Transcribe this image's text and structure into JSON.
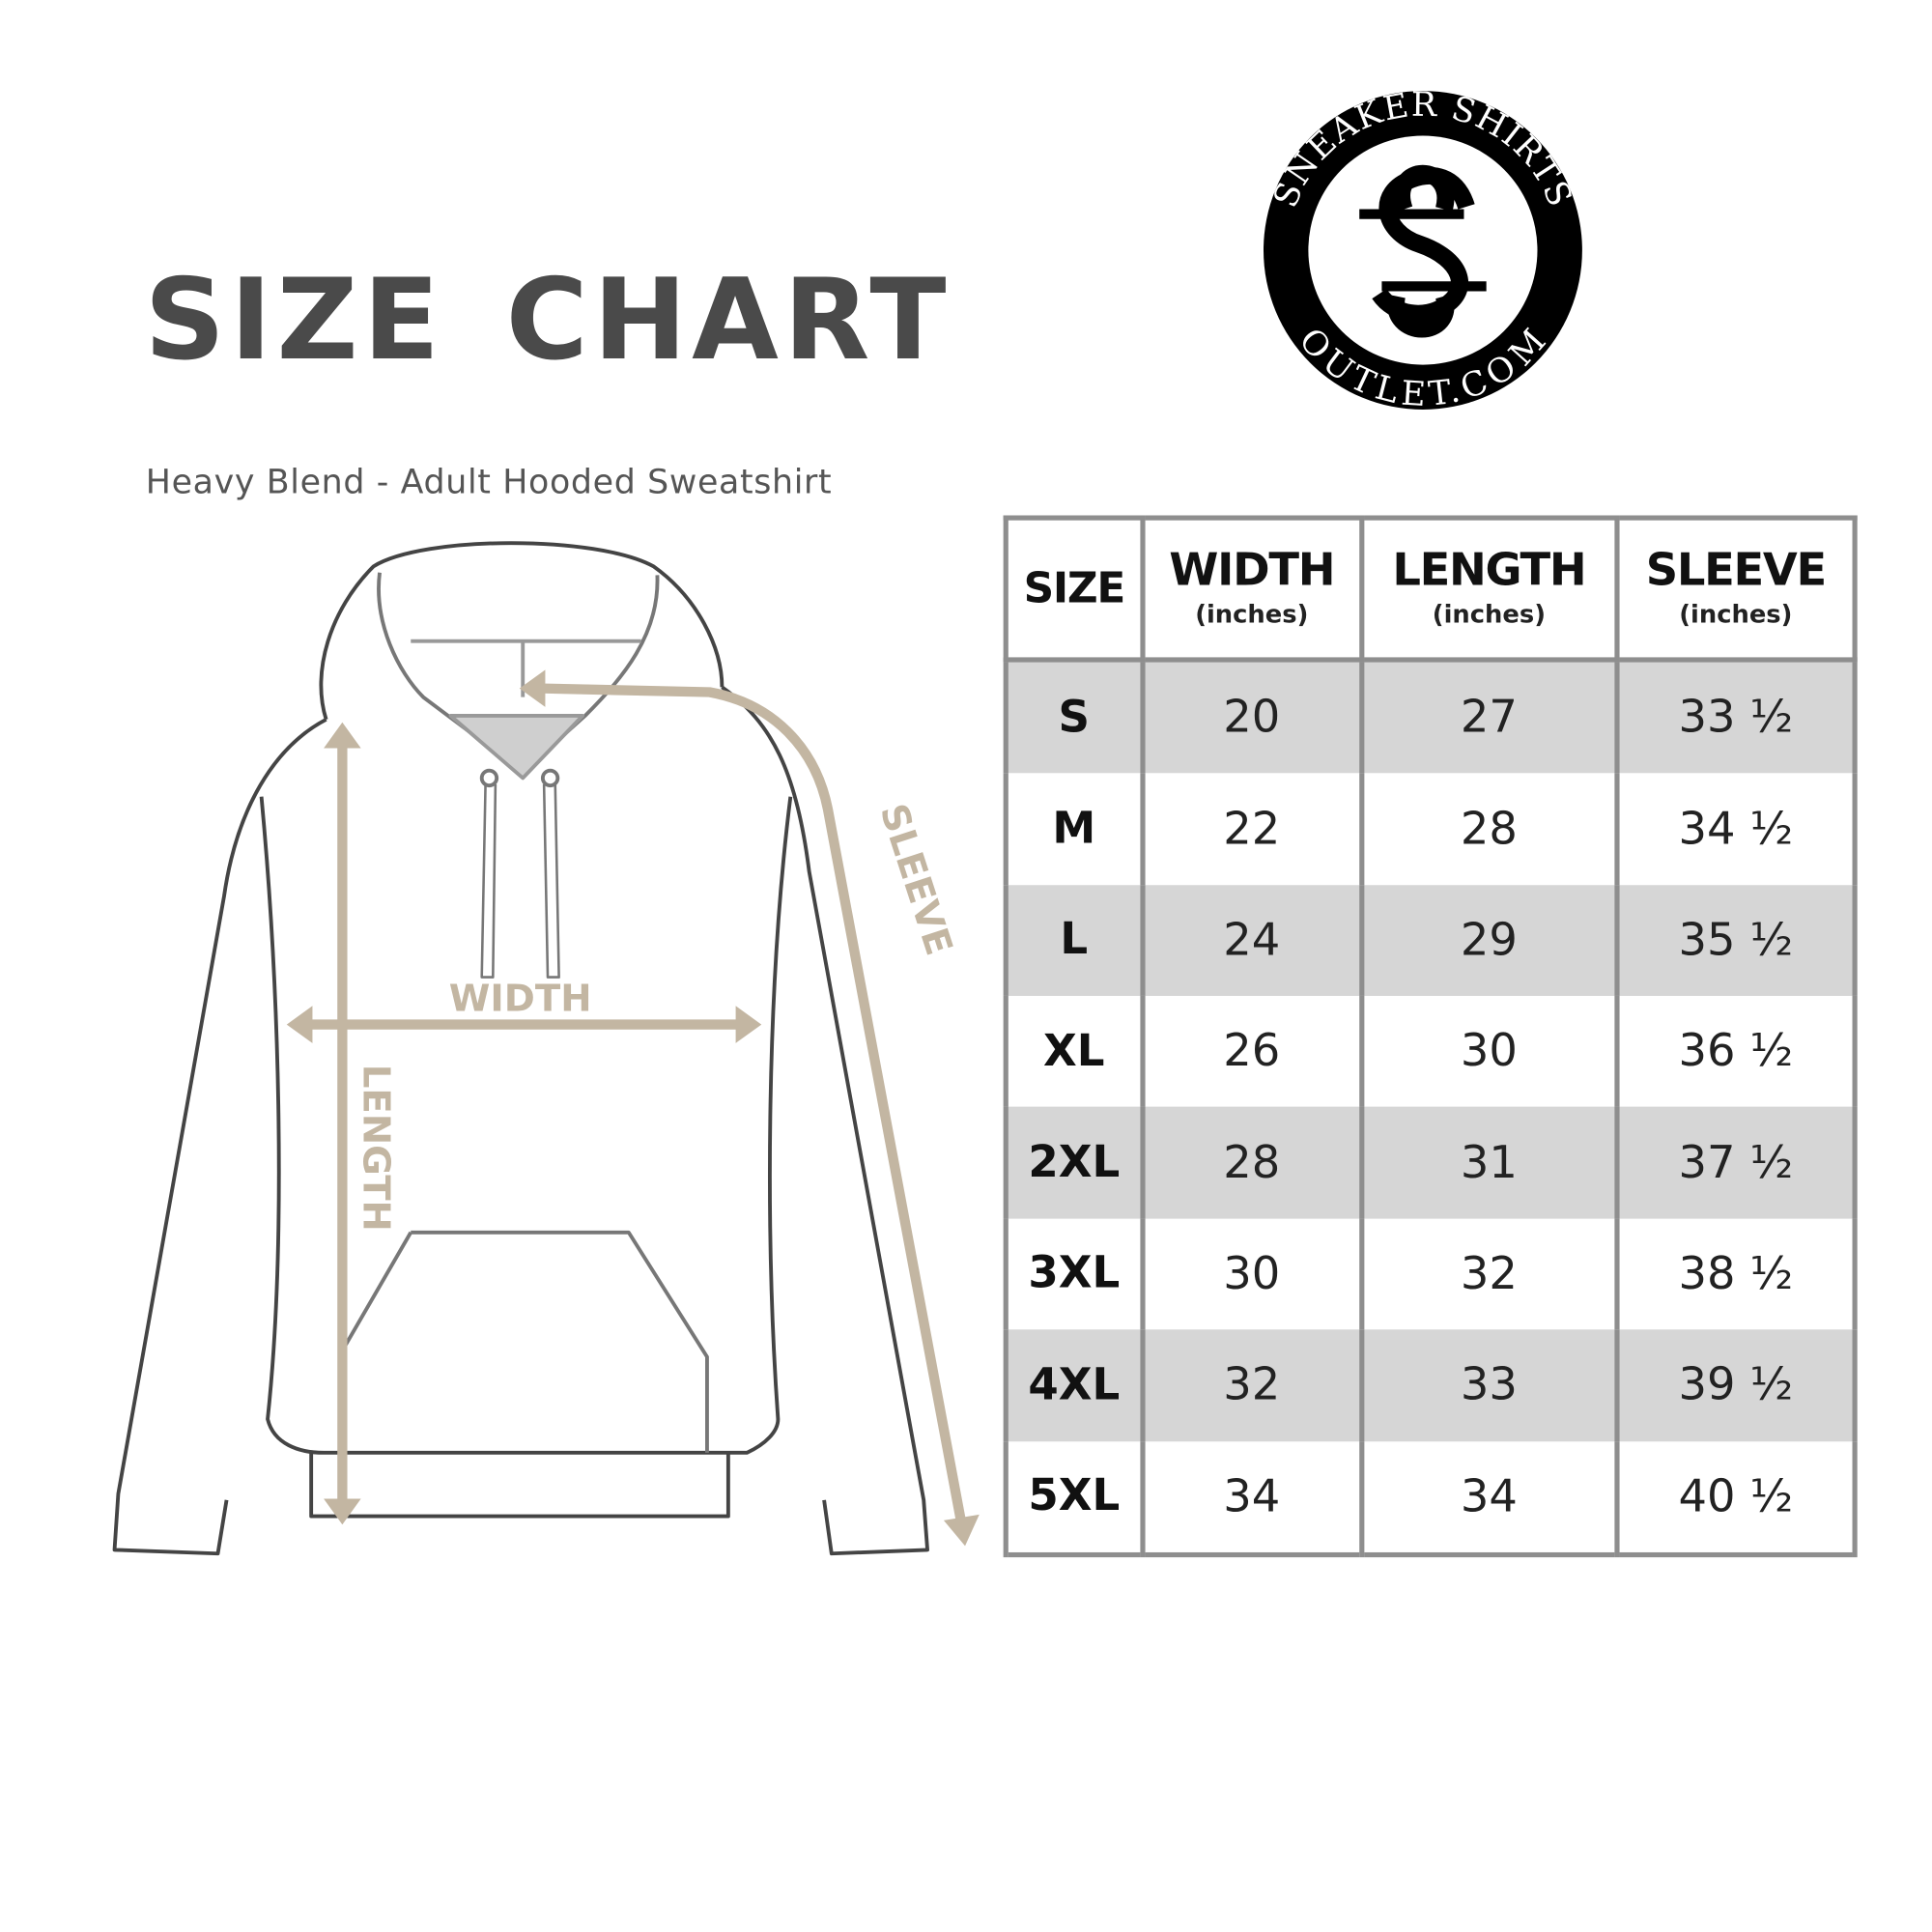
{
  "title": "SIZE CHART",
  "subtitle": "Heavy Blend - Adult Hooded Sweatshirt",
  "logo": {
    "top_text": "SNEAKER SHIRTS",
    "bottom_text": "OUTLET.COM",
    "monogram": "SS"
  },
  "diagram": {
    "width_label": "WIDTH",
    "length_label": "LENGTH",
    "sleeve_label": "SLEEVE",
    "arrow_color": "#c3b6a2",
    "outline_color": "#444444"
  },
  "table": {
    "headers": [
      {
        "label": "SIZE",
        "unit": ""
      },
      {
        "label": "WIDTH",
        "unit": "(inches)"
      },
      {
        "label": "LENGTH",
        "unit": "(inches)"
      },
      {
        "label": "SLEEVE",
        "unit": "(inches)"
      }
    ],
    "rows": [
      [
        "S",
        "20",
        "27",
        "33 ½"
      ],
      [
        "M",
        "22",
        "28",
        "34 ½"
      ],
      [
        "L",
        "24",
        "29",
        "35 ½"
      ],
      [
        "XL",
        "26",
        "30",
        "36 ½"
      ],
      [
        "2XL",
        "28",
        "31",
        "37 ½"
      ],
      [
        "3XL",
        "30",
        "32",
        "38 ½"
      ],
      [
        "4XL",
        "32",
        "33",
        "39 ½"
      ],
      [
        "5XL",
        "34",
        "34",
        "40 ½"
      ]
    ],
    "shade_color": "#d6d6d6",
    "border_color": "#8e8e8e"
  }
}
